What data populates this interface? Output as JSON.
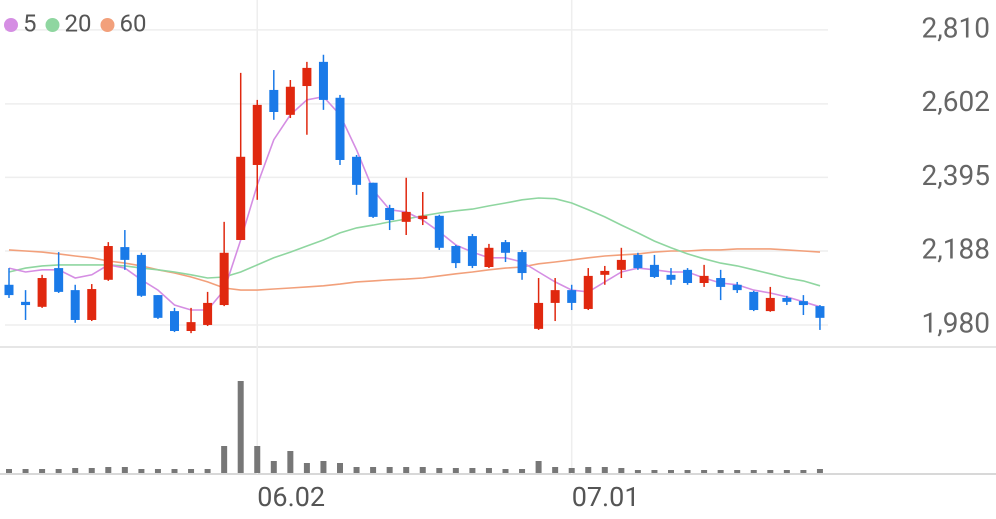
{
  "chart_data": {
    "type": "candlestick",
    "categories": [
      null,
      null,
      null,
      null,
      null,
      null,
      null,
      null,
      null,
      null,
      null,
      null,
      null,
      null,
      null,
      "06.02",
      null,
      null,
      null,
      null,
      null,
      null,
      null,
      null,
      null,
      null,
      null,
      null,
      null,
      null,
      null,
      null,
      null,
      null,
      "07.01",
      null,
      null,
      null,
      null,
      null,
      null,
      null,
      null,
      null,
      null,
      null,
      null,
      null,
      null,
      null
    ],
    "open": [
      2093,
      2045,
      2031,
      2140,
      2078,
      1994,
      2107,
      2199,
      2177,
      2064,
      2019,
      1963,
      1980,
      2036,
      2219,
      2430,
      2641,
      2571,
      2652,
      2720,
      2619,
      2453,
      2380,
      2309,
      2270,
      2278,
      2287,
      2202,
      2230,
      2143,
      2213,
      2185,
      1969,
      2042,
      2078,
      2025,
      2121,
      2135,
      2177,
      2149,
      2121,
      2135,
      2098,
      2112,
      2093,
      2073,
      2019,
      2056,
      2047,
      2033
    ],
    "high": [
      2140,
      2078,
      2121,
      2185,
      2093,
      2095,
      2213,
      2247,
      2183,
      2064,
      2028,
      2028,
      2073,
      2270,
      2689,
      2613,
      2697,
      2669,
      2720,
      2740,
      2627,
      2458,
      2380,
      2318,
      2394,
      2354,
      2290,
      2205,
      2236,
      2208,
      2219,
      2191,
      2112,
      2112,
      2093,
      2140,
      2146,
      2197,
      2183,
      2177,
      2140,
      2140,
      2149,
      2135,
      2101,
      2076,
      2087,
      2062,
      2064,
      2036
    ],
    "low": [
      2056,
      1994,
      2028,
      2070,
      1986,
      1991,
      2104,
      2135,
      2059,
      1997,
      1960,
      1957,
      1977,
      2033,
      2219,
      2332,
      2557,
      2562,
      2515,
      2585,
      2430,
      2346,
      2281,
      2247,
      2233,
      2261,
      2191,
      2140,
      2140,
      2140,
      2157,
      2107,
      1966,
      1991,
      2022,
      2022,
      2093,
      2112,
      2135,
      2112,
      2093,
      2093,
      2087,
      2050,
      2070,
      2019,
      2017,
      2036,
      2008,
      1966
    ],
    "close": [
      2064,
      2036,
      2112,
      2073,
      1994,
      2081,
      2202,
      2163,
      2062,
      2000,
      1963,
      1988,
      2042,
      2183,
      2453,
      2599,
      2579,
      2650,
      2703,
      2613,
      2444,
      2374,
      2284,
      2275,
      2298,
      2287,
      2197,
      2154,
      2146,
      2197,
      2183,
      2126,
      2042,
      2078,
      2042,
      2118,
      2132,
      2163,
      2140,
      2115,
      2107,
      2098,
      2118,
      2087,
      2078,
      2022,
      2056,
      2045,
      2036,
      2000
    ],
    "up_color": "#e0280f",
    "down_color": "#1a7ae8",
    "moving_averages": [
      {
        "name": "5",
        "color": "#d58ee3",
        "values": [
          2140,
          2129,
          2135,
          2135,
          2112,
          2121,
          2149,
          2140,
          2107,
          2078,
          2036,
          2022,
          2022,
          2078,
          2219,
          2374,
          2501,
          2571,
          2613,
          2622,
          2571,
          2472,
          2360,
          2304,
          2298,
          2275,
          2242,
          2205,
          2185,
          2169,
          2169,
          2157,
          2129,
          2101,
          2078,
          2073,
          2101,
          2129,
          2140,
          2135,
          2129,
          2129,
          2112,
          2098,
          2093,
          2078,
          2070,
          2059,
          2045,
          2031
        ]
      },
      {
        "name": "20",
        "color": "#8fd6a0",
        "values": [
          2129,
          2140,
          2146,
          2149,
          2149,
          2149,
          2149,
          2146,
          2140,
          2135,
          2129,
          2121,
          2112,
          2115,
          2129,
          2149,
          2169,
          2185,
          2202,
          2219,
          2239,
          2253,
          2261,
          2270,
          2278,
          2287,
          2295,
          2301,
          2306,
          2315,
          2323,
          2332,
          2337,
          2335,
          2323,
          2304,
          2284,
          2261,
          2239,
          2216,
          2197,
          2180,
          2166,
          2154,
          2146,
          2135,
          2124,
          2112,
          2104,
          2090
        ]
      },
      {
        "name": "60",
        "color": "#f2a07b",
        "values": [
          2191,
          2188,
          2185,
          2180,
          2174,
          2169,
          2160,
          2154,
          2146,
          2135,
          2126,
          2115,
          2101,
          2084,
          2078,
          2078,
          2081,
          2084,
          2087,
          2090,
          2095,
          2101,
          2104,
          2107,
          2109,
          2112,
          2118,
          2124,
          2129,
          2135,
          2140,
          2143,
          2152,
          2157,
          2163,
          2169,
          2174,
          2177,
          2180,
          2185,
          2188,
          2188,
          2191,
          2191,
          2194,
          2194,
          2194,
          2191,
          2188,
          2185
        ]
      }
    ],
    "volume": [
      4,
      4,
      4,
      4,
      5,
      5,
      6,
      6,
      4,
      4,
      4,
      4,
      4,
      27,
      92,
      27,
      12,
      22,
      10,
      12,
      10,
      6,
      6,
      6,
      6,
      6,
      5,
      5,
      5,
      5,
      4,
      4,
      12,
      6,
      5,
      6,
      6,
      5,
      3,
      3,
      3,
      3,
      3,
      3,
      3,
      3,
      3,
      3,
      3,
      4
    ],
    "volume_color": "#777777",
    "ylim": [
      1918,
      2894
    ],
    "yticks": [
      {
        "value": 1980,
        "label": "1,980"
      },
      {
        "value": 2188,
        "label": "2,188"
      },
      {
        "value": 2395,
        "label": "2,395"
      },
      {
        "value": 2602,
        "label": "2,602"
      },
      {
        "value": 2810,
        "label": "2,810"
      }
    ],
    "grid": true
  }
}
